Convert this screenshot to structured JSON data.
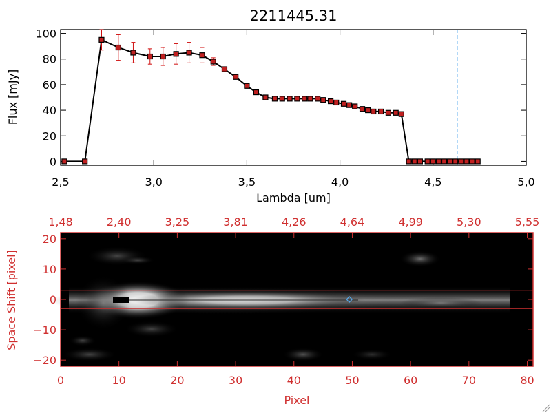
{
  "title": "2211445.31",
  "chart_data": [
    {
      "type": "line",
      "title": "2211445.31",
      "xlabel": "Lambda [um]",
      "ylabel": "Flux [mJy]",
      "xlim": [
        2.5,
        5.0
      ],
      "ylim": [
        -3,
        103
      ],
      "xticks": [
        "2.5",
        "3.0",
        "3.5",
        "4.0",
        "4.5",
        "5.0"
      ],
      "yticks": [
        "0",
        "20",
        "40",
        "60",
        "80",
        "100"
      ],
      "reference_line_x": 4.63,
      "series": [
        {
          "x": [
            2.52,
            2.63,
            2.72,
            2.81,
            2.89,
            2.98,
            3.05,
            3.12,
            3.19,
            3.26,
            3.32,
            3.38,
            3.44,
            3.5,
            3.55,
            3.6,
            3.65,
            3.69,
            3.73,
            3.77,
            3.81,
            3.84,
            3.88,
            3.91,
            3.95,
            3.98,
            4.02,
            4.05,
            4.08,
            4.12,
            4.15,
            4.18,
            4.22,
            4.26,
            4.3,
            4.33,
            4.37,
            4.4,
            4.43,
            4.47,
            4.5,
            4.53,
            4.56,
            4.59,
            4.62,
            4.65,
            4.68,
            4.71,
            4.74
          ],
          "y": [
            0,
            0,
            95,
            89,
            85,
            82,
            82,
            84,
            85,
            83,
            78,
            72,
            66,
            59,
            54,
            50,
            49,
            49,
            49,
            49,
            49,
            49,
            49,
            48,
            47,
            46,
            45,
            44,
            43,
            41,
            40,
            39,
            39,
            38,
            38,
            37,
            0,
            0,
            0,
            0,
            0,
            0,
            0,
            0,
            0,
            0,
            0,
            0,
            0
          ],
          "yerr": [
            0,
            0,
            8,
            10,
            8,
            6,
            7,
            8,
            8,
            6,
            3,
            2,
            1,
            1,
            1,
            1,
            1,
            1,
            1,
            1,
            1,
            1,
            1,
            1,
            1,
            1,
            1,
            1,
            1,
            1,
            1,
            1,
            1,
            1,
            1,
            1,
            0,
            0,
            0,
            0,
            0,
            0,
            0,
            0,
            0,
            0,
            0,
            0,
            0
          ]
        }
      ]
    },
    {
      "type": "heatmap",
      "xlabel": "Pixel",
      "ylabel": "Space Shift [pixel]",
      "xlim": [
        0,
        81
      ],
      "ylim": [
        -22,
        22
      ],
      "xticks": [
        "0",
        "10",
        "20",
        "30",
        "40",
        "50",
        "60",
        "70",
        "80"
      ],
      "yticks": [
        "-20",
        "-10",
        "0",
        "10",
        "20"
      ],
      "top_axis_ticks": [
        "1.48",
        "2.40",
        "3.25",
        "3.81",
        "4.26",
        "4.64",
        "4.99",
        "5.30",
        "5.55"
      ],
      "band_lines_y": [
        3,
        -3
      ],
      "marker_pixel": 49.5
    }
  ],
  "colors": {
    "axes": "#000000",
    "error_bar": "#d01010",
    "lower_panel": "#d03030",
    "marker_fill": "#c02020",
    "reference_line": "#55aaee",
    "image_background": "#000000"
  }
}
